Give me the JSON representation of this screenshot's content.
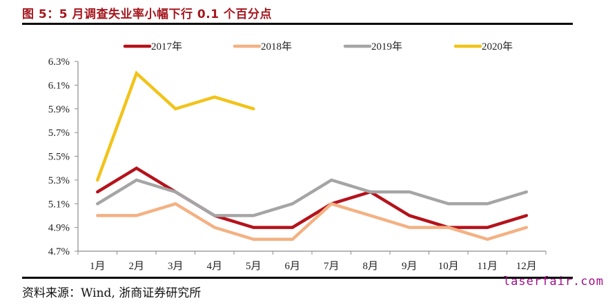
{
  "header": {
    "title": "图 5：5 月调查失业率小幅下行 0.1 个百分点"
  },
  "footer": {
    "source": "资料来源：Wind, 浙商证券研究所",
    "watermark": "laserfair.com"
  },
  "chart_data": {
    "type": "line",
    "title": "图 5：5 月调查失业率小幅下行 0.1 个百分点",
    "xlabel": "",
    "ylabel": "",
    "categories": [
      "1月",
      "2月",
      "3月",
      "4月",
      "5月",
      "6月",
      "7月",
      "8月",
      "9月",
      "10月",
      "11月",
      "12月"
    ],
    "ylim": [
      4.7,
      6.3
    ],
    "yticks": [
      4.7,
      4.9,
      5.1,
      5.3,
      5.5,
      5.7,
      5.9,
      6.1,
      6.3
    ],
    "ytick_labels": [
      "4.7%",
      "4.9%",
      "5.1%",
      "5.3%",
      "5.5%",
      "5.7%",
      "5.9%",
      "6.1%",
      "6.3%"
    ],
    "grid": false,
    "legend_position": "top",
    "series": [
      {
        "name": "2017年",
        "color": "#B5121B",
        "values": [
          5.2,
          5.4,
          5.2,
          5.0,
          4.9,
          4.9,
          5.1,
          5.2,
          5.0,
          4.9,
          4.9,
          5.0
        ]
      },
      {
        "name": "2018年",
        "color": "#F4B183",
        "values": [
          5.0,
          5.0,
          5.1,
          4.9,
          4.8,
          4.8,
          5.1,
          5.0,
          4.9,
          4.9,
          4.8,
          4.9
        ]
      },
      {
        "name": "2019年",
        "color": "#A5A5A5",
        "values": [
          5.1,
          5.3,
          5.2,
          5.0,
          5.0,
          5.1,
          5.3,
          5.2,
          5.2,
          5.1,
          5.1,
          5.2
        ]
      },
      {
        "name": "2020年",
        "color": "#F2C318",
        "values": [
          5.3,
          6.2,
          5.9,
          6.0,
          5.9
        ]
      }
    ]
  }
}
